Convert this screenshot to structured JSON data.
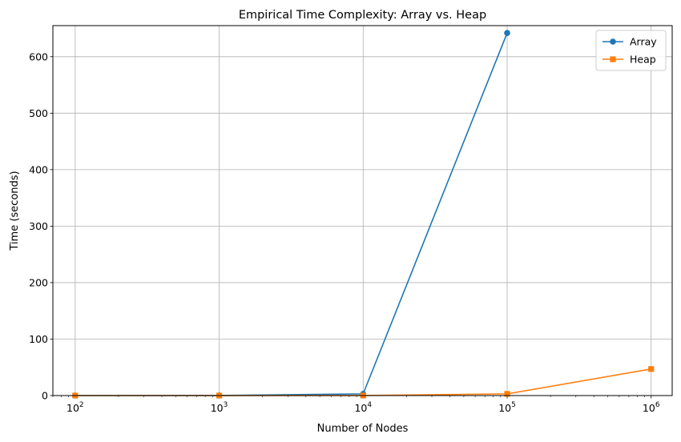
{
  "chart_data": {
    "type": "line",
    "title": "Empirical Time Complexity: Array vs. Heap",
    "xlabel": "Number of Nodes",
    "ylabel": "Time (seconds)",
    "xscale": "log",
    "xlim": [
      70,
      1400000
    ],
    "ylim": [
      0,
      655
    ],
    "grid": true,
    "legend_position": "top-right",
    "x_ticks": [
      {
        "value": 100,
        "base": "10",
        "exp": "2"
      },
      {
        "value": 1000,
        "base": "10",
        "exp": "3"
      },
      {
        "value": 10000,
        "base": "10",
        "exp": "4"
      },
      {
        "value": 100000,
        "base": "10",
        "exp": "5"
      },
      {
        "value": 1000000,
        "base": "10",
        "exp": "6"
      }
    ],
    "y_ticks": [
      {
        "value": 0,
        "label": "0"
      },
      {
        "value": 100,
        "label": "100"
      },
      {
        "value": 200,
        "label": "200"
      },
      {
        "value": 300,
        "label": "300"
      },
      {
        "value": 400,
        "label": "400"
      },
      {
        "value": 500,
        "label": "500"
      },
      {
        "value": 600,
        "label": "600"
      }
    ],
    "series": [
      {
        "name": "Array",
        "color": "#1f77b4",
        "marker": "circle",
        "x": [
          100,
          1000,
          10000,
          100000
        ],
        "y": [
          0.0,
          0.03,
          3.0,
          642.0
        ]
      },
      {
        "name": "Heap",
        "color": "#ff7f0e",
        "marker": "square",
        "x": [
          100,
          1000,
          10000,
          100000,
          1000000
        ],
        "y": [
          0.0,
          0.0,
          0.05,
          3.0,
          47.0
        ]
      }
    ]
  }
}
